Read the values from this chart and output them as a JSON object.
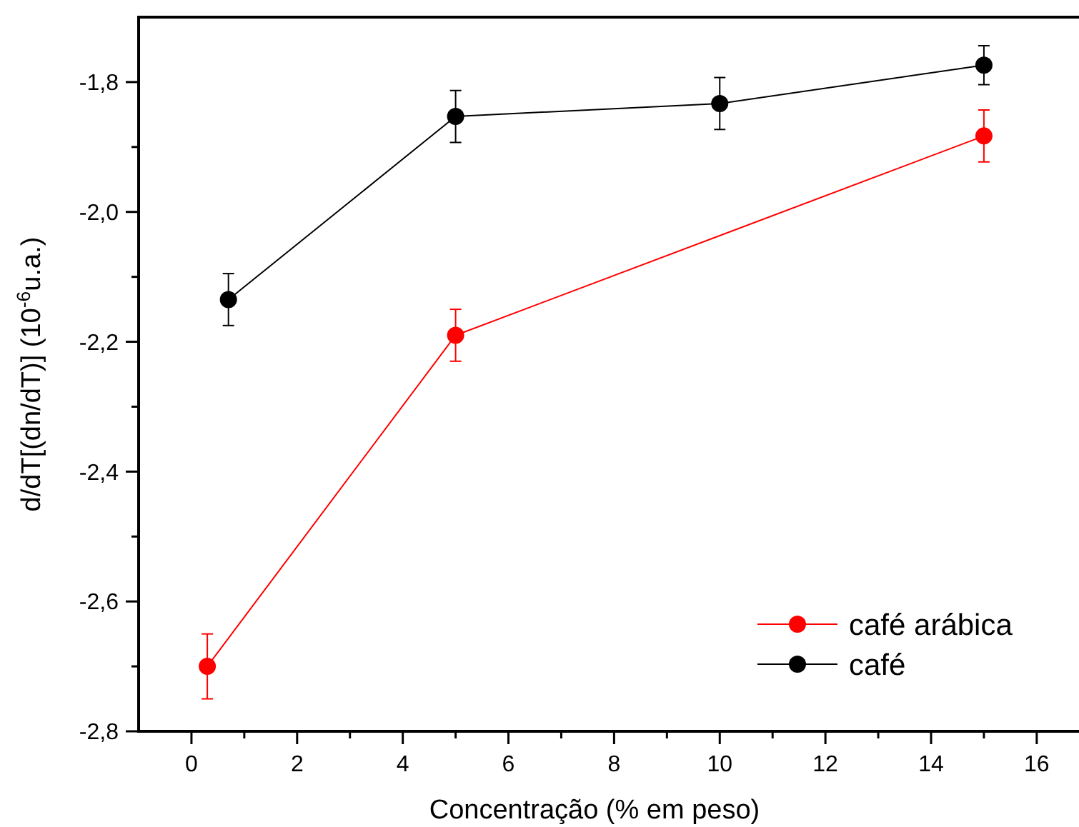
{
  "chart_data": {
    "type": "line",
    "xlabel": "Concentração (% em peso)",
    "ylabel": "d/dT[(dn/dT)] (10$^{-6}$u.a.)",
    "xlim": [
      -1,
      16.8
    ],
    "ylim": [
      -2.8,
      -1.7
    ],
    "xticks": [
      0,
      {
        "value": 1,
        "label": null
      },
      2,
      {
        "value": 3,
        "label": null
      },
      4,
      {
        "value": 5,
        "label": null
      },
      6,
      {
        "value": 7,
        "label": null
      },
      8,
      {
        "value": 9,
        "label": null
      },
      10,
      {
        "value": 11,
        "label": null
      },
      12,
      {
        "value": 13,
        "label": null
      },
      14,
      {
        "value": 15,
        "label": null
      },
      16
    ],
    "yticks": [
      {
        "value": -2.8,
        "label": "-2,8"
      },
      {
        "value": -2.7,
        "label": null
      },
      {
        "value": -2.6,
        "label": "-2,6"
      },
      {
        "value": -2.5,
        "label": null
      },
      {
        "value": -2.4,
        "label": "-2,4"
      },
      {
        "value": -2.3,
        "label": null
      },
      {
        "value": -2.2,
        "label": "-2,2"
      },
      {
        "value": -2.1,
        "label": null
      },
      {
        "value": -2.0,
        "label": "-2,0"
      },
      {
        "value": -1.9,
        "label": null
      },
      {
        "value": -1.8,
        "label": "-1,8"
      }
    ],
    "series": [
      {
        "name": "café arábica",
        "color": "#ff0000",
        "x": [
          0.3,
          5,
          15
        ],
        "values": [
          -2.7,
          -2.19,
          -1.883
        ],
        "errors": [
          0.05,
          0.04,
          0.04
        ]
      },
      {
        "name": "café",
        "color": "#000000",
        "x": [
          0.7,
          5,
          10,
          15
        ],
        "values": [
          -2.135,
          -1.853,
          -1.833,
          -1.774
        ],
        "errors": [
          0.04,
          0.04,
          0.04,
          0.03
        ]
      }
    ],
    "marker": "circle",
    "legend": "bottom right",
    "grid": false
  }
}
